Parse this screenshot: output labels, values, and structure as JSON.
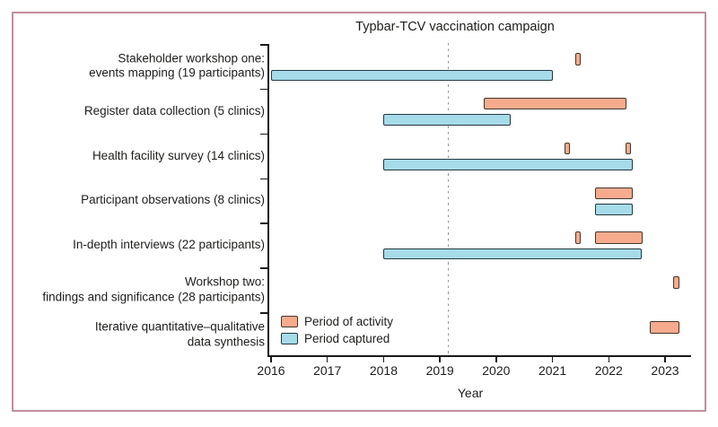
{
  "figure": {
    "frame_color": "#c48e9c",
    "background": "#ffffff"
  },
  "chart_data": {
    "type": "gantt",
    "annotation": {
      "label": "Typbar-TCV vaccination campaign",
      "year": 2019.15,
      "style": "vertical-dashed-line",
      "color": "#8d959b"
    },
    "xlabel": "Year",
    "x_ticks": [
      2016,
      2017,
      2018,
      2019,
      2020,
      2021,
      2022,
      2023
    ],
    "x_range": [
      2016,
      2023.5
    ],
    "grid": false,
    "legend_position": "bottom-left-inside",
    "legend": [
      {
        "key": "activity",
        "label": "Period of activity",
        "fill": "#f6ab8d",
        "border": "#42372c"
      },
      {
        "key": "captured",
        "label": "Period captured",
        "fill": "#a6dbe9",
        "border": "#233740"
      }
    ],
    "rows": [
      {
        "label_lines": [
          "Stakeholder workshop one:",
          "events mapping (19 participants)"
        ],
        "activity": [
          [
            2021.41,
            2021.5
          ]
        ],
        "captured": [
          [
            2016.0,
            2021.0
          ]
        ]
      },
      {
        "label_lines": [
          "Register data collection (5 clinics)"
        ],
        "activity": [
          [
            2019.78,
            2022.31
          ]
        ],
        "captured": [
          [
            2018.0,
            2020.25
          ]
        ]
      },
      {
        "label_lines": [
          "Health facility survey (14 clinics)"
        ],
        "activity": [
          [
            2021.21,
            2021.31
          ],
          [
            2022.3,
            2022.4
          ]
        ],
        "captured": [
          [
            2018.0,
            2022.42
          ]
        ]
      },
      {
        "label_lines": [
          "Participant observations (8 clinics)"
        ],
        "activity": [
          [
            2021.75,
            2022.42
          ]
        ],
        "captured": [
          [
            2021.75,
            2022.42
          ]
        ]
      },
      {
        "label_lines": [
          "In-depth interviews (22 participants)"
        ],
        "activity": [
          [
            2021.41,
            2021.5
          ],
          [
            2021.75,
            2022.6
          ]
        ],
        "captured": [
          [
            2018.0,
            2022.58
          ]
        ]
      },
      {
        "label_lines": [
          "Workshop two:",
          "findings and significance (28 participants)"
        ],
        "activity": [
          [
            2023.15,
            2023.26
          ]
        ],
        "captured": []
      },
      {
        "label_lines": [
          "Iterative quantitative–qualitative",
          "data synthesis"
        ],
        "activity": [
          [
            2022.73,
            2023.26
          ]
        ],
        "captured": []
      }
    ]
  }
}
